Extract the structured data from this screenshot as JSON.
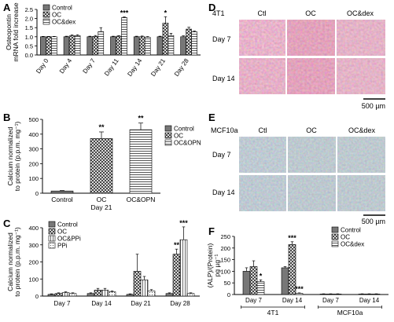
{
  "panel_letters": {
    "A": "A",
    "B": "B",
    "C": "C",
    "D": "D",
    "E": "E",
    "F": "F"
  },
  "colors": {
    "control": "#777777",
    "oc_pattern": "#ffffff",
    "stain_4t1": "#c85a7d",
    "stain_mcf": "#7f98a6"
  },
  "chart_data": [
    {
      "panel": "A",
      "type": "bar",
      "ylabel": "Osteopontin mRNA fold increase",
      "ylim": [
        0,
        2.5
      ],
      "yticks": [
        "0.0",
        "0.5",
        "1.0",
        "1.5",
        "2.0",
        "2.5"
      ],
      "categories": [
        "Day 0",
        "Day 4",
        "Day 7",
        "Day 11",
        "Day 14",
        "Day 21",
        "Day 28"
      ],
      "legend": [
        "Control",
        "OC",
        "OC&dex"
      ],
      "series": [
        {
          "name": "Control",
          "values": [
            1.0,
            1.0,
            1.0,
            1.0,
            1.0,
            1.0,
            1.0
          ],
          "errors": [
            0.02,
            0.03,
            0.03,
            0.03,
            0.03,
            0.03,
            0.05
          ]
        },
        {
          "name": "OC",
          "values": [
            1.0,
            1.05,
            1.02,
            1.03,
            1.0,
            1.75,
            1.42
          ],
          "errors": [
            0.02,
            0.05,
            0.05,
            0.03,
            0.04,
            0.35,
            0.1
          ]
        },
        {
          "name": "OC&dex",
          "values": [
            1.0,
            1.06,
            1.28,
            2.05,
            0.97,
            1.07,
            1.27
          ],
          "errors": [
            0.02,
            0.05,
            0.22,
            0.04,
            0.04,
            0.12,
            0.05
          ]
        }
      ],
      "annotations": [
        {
          "text": "***",
          "category": 3,
          "series": 2
        },
        {
          "text": "*",
          "category": 5,
          "series": 1
        }
      ]
    },
    {
      "panel": "B",
      "type": "bar",
      "ylabel": "Calcium normalized to protein (p.p.m. mg⁻¹)",
      "ylim": [
        0,
        500
      ],
      "yticks": [
        "0",
        "100",
        "200",
        "300",
        "400",
        "500"
      ],
      "categories": [
        "Control",
        "OC",
        "OC&OPN"
      ],
      "xsublabel": "Day 21",
      "legend": [
        "Control",
        "OC",
        "OC&OPN"
      ],
      "values": [
        15,
        370,
        430
      ],
      "errors": [
        3,
        45,
        45
      ],
      "annotations": [
        {
          "text": "**",
          "category": 1
        },
        {
          "text": "**",
          "category": 2
        }
      ]
    },
    {
      "panel": "C",
      "type": "bar",
      "ylabel": "Calcium normalized to protein (p.p.m. mg⁻¹)",
      "ylim": [
        0,
        400
      ],
      "yticks": [
        "0",
        "100",
        "200",
        "300",
        "400"
      ],
      "categories": [
        "Day 7",
        "Day 14",
        "Day 21",
        "Day 28"
      ],
      "legend": [
        "Control",
        "OC",
        "OC&PPi",
        "PPi"
      ],
      "series": [
        {
          "name": "Control",
          "values": [
            10,
            15,
            10,
            15
          ],
          "errors": [
            3,
            4,
            3,
            4
          ]
        },
        {
          "name": "OC",
          "values": [
            15,
            35,
            145,
            245
          ],
          "errors": [
            4,
            10,
            100,
            30
          ]
        },
        {
          "name": "OC&PPi",
          "values": [
            20,
            35,
            95,
            330
          ],
          "errors": [
            5,
            10,
            20,
            75
          ]
        },
        {
          "name": "PPi",
          "values": [
            15,
            25,
            30,
            15
          ],
          "errors": [
            4,
            5,
            8,
            4
          ]
        }
      ],
      "annotations": [
        {
          "text": "**",
          "category": 3,
          "series": 1
        },
        {
          "text": "***",
          "category": 3,
          "series": 2
        }
      ]
    },
    {
      "panel": "F",
      "type": "bar",
      "ylabel": "(ALP)/(Protein) pg µg⁻¹",
      "ylim": [
        0,
        250
      ],
      "yticks": [
        "0",
        "50",
        "100",
        "150",
        "200",
        "250"
      ],
      "categories": [
        "Day 7",
        "Day 14",
        "Day 7",
        "Day 14"
      ],
      "groups": [
        "4T1",
        "MCF10a"
      ],
      "legend": [
        "Control",
        "OC",
        "OC&dex"
      ],
      "series": [
        {
          "name": "Control",
          "values": [
            100,
            115,
            2,
            2
          ],
          "errors": [
            15,
            5,
            1,
            1
          ]
        },
        {
          "name": "OC",
          "values": [
            120,
            215,
            2,
            2
          ],
          "errors": [
            25,
            12,
            1,
            1
          ]
        },
        {
          "name": "OC&dex",
          "values": [
            55,
            5,
            2,
            2
          ],
          "errors": [
            8,
            2,
            1,
            1
          ]
        }
      ],
      "annotations": [
        {
          "text": "*",
          "category": 0,
          "series": 2
        },
        {
          "text": "***",
          "category": 1,
          "series": 1
        },
        {
          "text": "***",
          "category": 1,
          "series": 2
        }
      ]
    }
  ],
  "panel_d": {
    "cell_line": "4T1",
    "columns": [
      "Ctl",
      "OC",
      "OC&dex"
    ],
    "rows": [
      "Day 7",
      "Day 14"
    ],
    "scale": "500 µm"
  },
  "panel_e": {
    "cell_line": "MCF10a",
    "columns": [
      "Ctl",
      "OC",
      "OC&dex"
    ],
    "rows": [
      "Day 7",
      "Day 14"
    ],
    "scale": "500 µm"
  }
}
